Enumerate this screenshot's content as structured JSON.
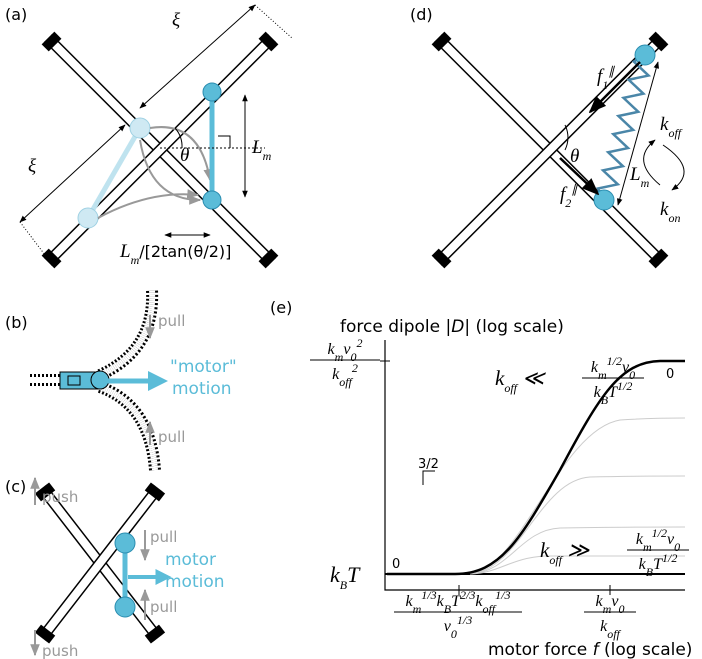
{
  "a": {
    "label": "(a)",
    "xi_top": "ξ",
    "xi_left": "ξ",
    "theta": "θ",
    "lm": [
      "L",
      "m"
    ],
    "lm_ratio": [
      "L",
      "m",
      "/[2tan(θ/2)]"
    ]
  },
  "b": {
    "label": "(b)",
    "pull_top": "pull",
    "pull_bottom": "pull",
    "motion_1": "\"motor\"",
    "motion_2": "motion"
  },
  "c": {
    "label": "(c)",
    "push_top": "push",
    "push_bottom": "push",
    "pull_top": "pull",
    "pull_bottom": "pull",
    "motion_1": "motor",
    "motion_2": "motion"
  },
  "d": {
    "label": "(d)",
    "f1": [
      "f",
      "1",
      "∥"
    ],
    "f2": [
      "f",
      "2",
      "∥"
    ],
    "theta": "θ",
    "koff": [
      "k",
      "off"
    ],
    "kon": [
      "k",
      "on"
    ],
    "lm": [
      "L",
      "m"
    ]
  },
  "e": {
    "label": "(e)",
    "y_label": [
      "force dipole |",
      "D",
      "| (log scale)"
    ],
    "x_label": [
      "motor force ",
      "f",
      " (log scale)"
    ],
    "y_tick_top": {
      "numerator": [
        "k",
        "m",
        "v",
        "0",
        "2"
      ],
      "denominator": [
        "k",
        "off",
        "2"
      ]
    },
    "y_tick_bottom": [
      "k",
      "B",
      "T"
    ],
    "x_tick_left": {
      "numerator": [
        "k",
        "m",
        "1/3",
        "k",
        "B",
        "T",
        "2/3",
        "k",
        "off",
        "1/3"
      ],
      "denominator": [
        "v",
        "0",
        "1/3"
      ]
    },
    "x_tick_right": {
      "numerator": [
        "k",
        "m",
        "v",
        "0"
      ],
      "denominator": [
        "k",
        "off"
      ]
    },
    "regime_upper": {
      "left": [
        "k",
        "off",
        " ≪ "
      ],
      "numerator": [
        "k",
        "m",
        "1/2",
        "v",
        "0"
      ],
      "denominator": [
        "k",
        "B",
        "T",
        "1/2"
      ]
    },
    "regime_lower": {
      "left": [
        "k",
        "off",
        " ≫ "
      ],
      "numerator": [
        "k",
        "m",
        "1/2",
        "v",
        "0"
      ],
      "denominator": [
        "k",
        "B",
        "T",
        "1/2"
      ]
    },
    "slope_mid": "3/2",
    "slope_left": "0",
    "slope_right": "0"
  }
}
